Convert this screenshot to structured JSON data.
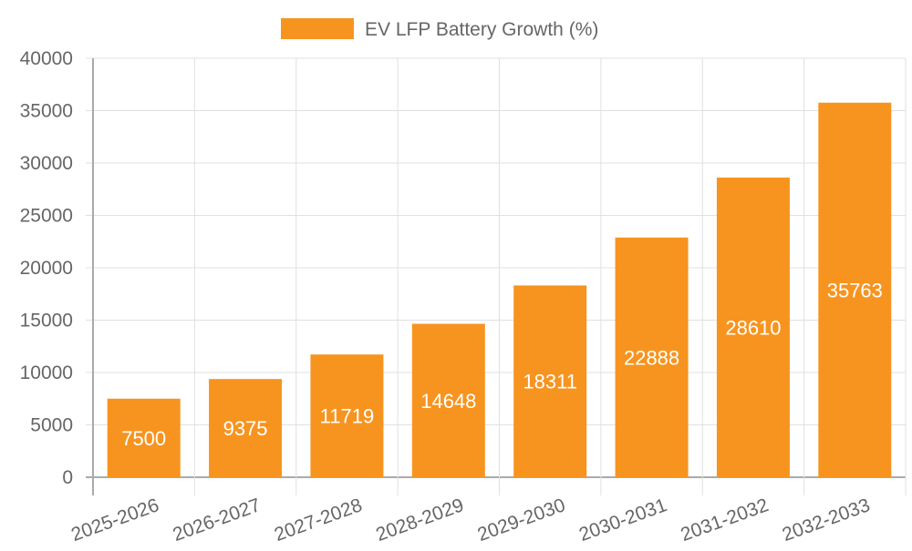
{
  "chart_data": {
    "type": "bar",
    "title": "",
    "legend": {
      "label": "EV LFP Battery Growth (%)",
      "placement": "top-center"
    },
    "categories": [
      "2025-2026",
      "2026-2027",
      "2027-2028",
      "2028-2029",
      "2029-2030",
      "2030-2031",
      "2031-2032",
      "2032-2033"
    ],
    "series": [
      {
        "name": "EV LFP Battery Growth (%)",
        "values": [
          7500,
          9375,
          11719,
          14648,
          18311,
          22888,
          28610,
          35763
        ],
        "color": "#f7941f"
      }
    ],
    "xlabel": "",
    "ylabel": "",
    "ylim": [
      0,
      40000
    ],
    "yticks": [
      "0",
      "5000",
      "10000",
      "15000",
      "20000",
      "25000",
      "30000",
      "35000",
      "40000"
    ],
    "grid": true,
    "data_labels": true
  }
}
